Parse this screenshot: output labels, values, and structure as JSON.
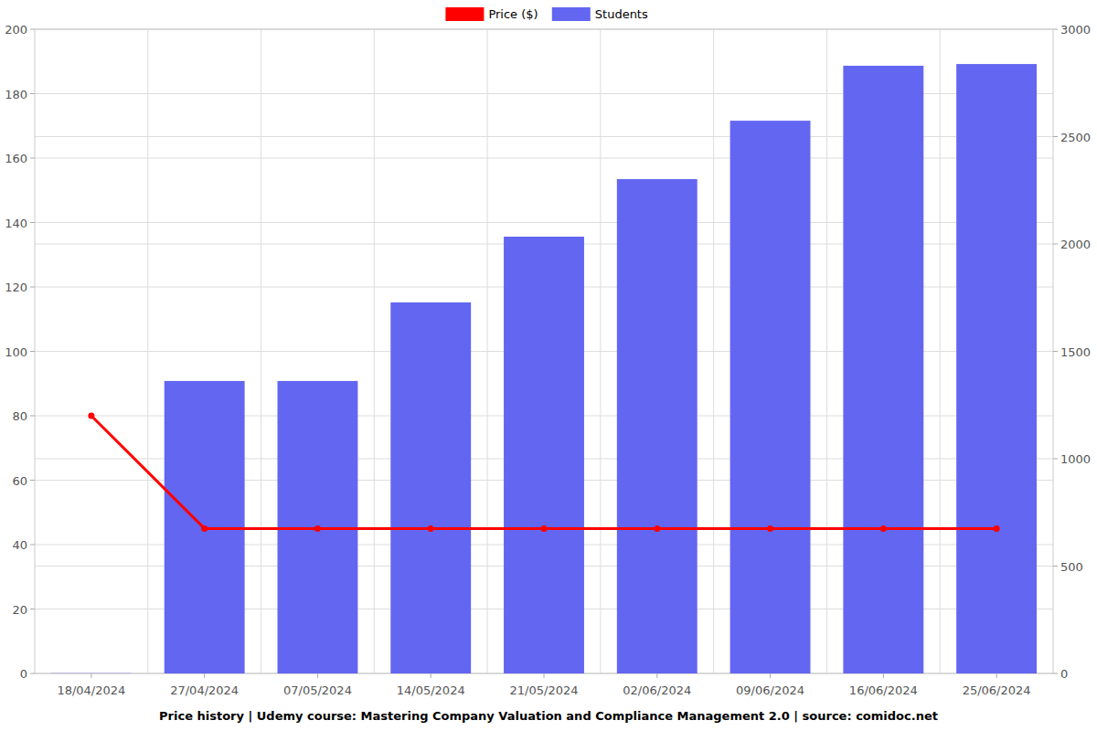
{
  "chart_data": {
    "type": "bar",
    "title": "Price history | Udemy course: Mastering Company Valuation and Compliance Management 2.0 | source: comidoc.net",
    "categories": [
      "18/04/2024",
      "27/04/2024",
      "07/05/2024",
      "14/05/2024",
      "21/05/2024",
      "02/06/2024",
      "09/06/2024",
      "16/06/2024",
      "25/06/2024"
    ],
    "series": [
      {
        "name": "Price ($)",
        "type": "line",
        "color": "#ff0000",
        "marker": "circle",
        "axis": "y",
        "values": [
          80,
          45,
          45,
          45,
          45,
          45,
          45,
          45,
          45
        ]
      },
      {
        "name": "Students",
        "type": "bar",
        "color": "#6366f1",
        "axis": "y2",
        "values": [
          1,
          1362,
          1362,
          1728,
          2034,
          2302,
          2574,
          2830,
          2838
        ]
      }
    ],
    "ylim": [
      0,
      200
    ],
    "yticks": [
      0,
      20,
      40,
      60,
      80,
      100,
      120,
      140,
      160,
      180,
      200
    ],
    "y2lim": [
      0,
      3000
    ],
    "y2ticks": [
      0,
      500,
      1000,
      1500,
      2000,
      2500,
      3000
    ],
    "grid": true,
    "legend": "top"
  }
}
